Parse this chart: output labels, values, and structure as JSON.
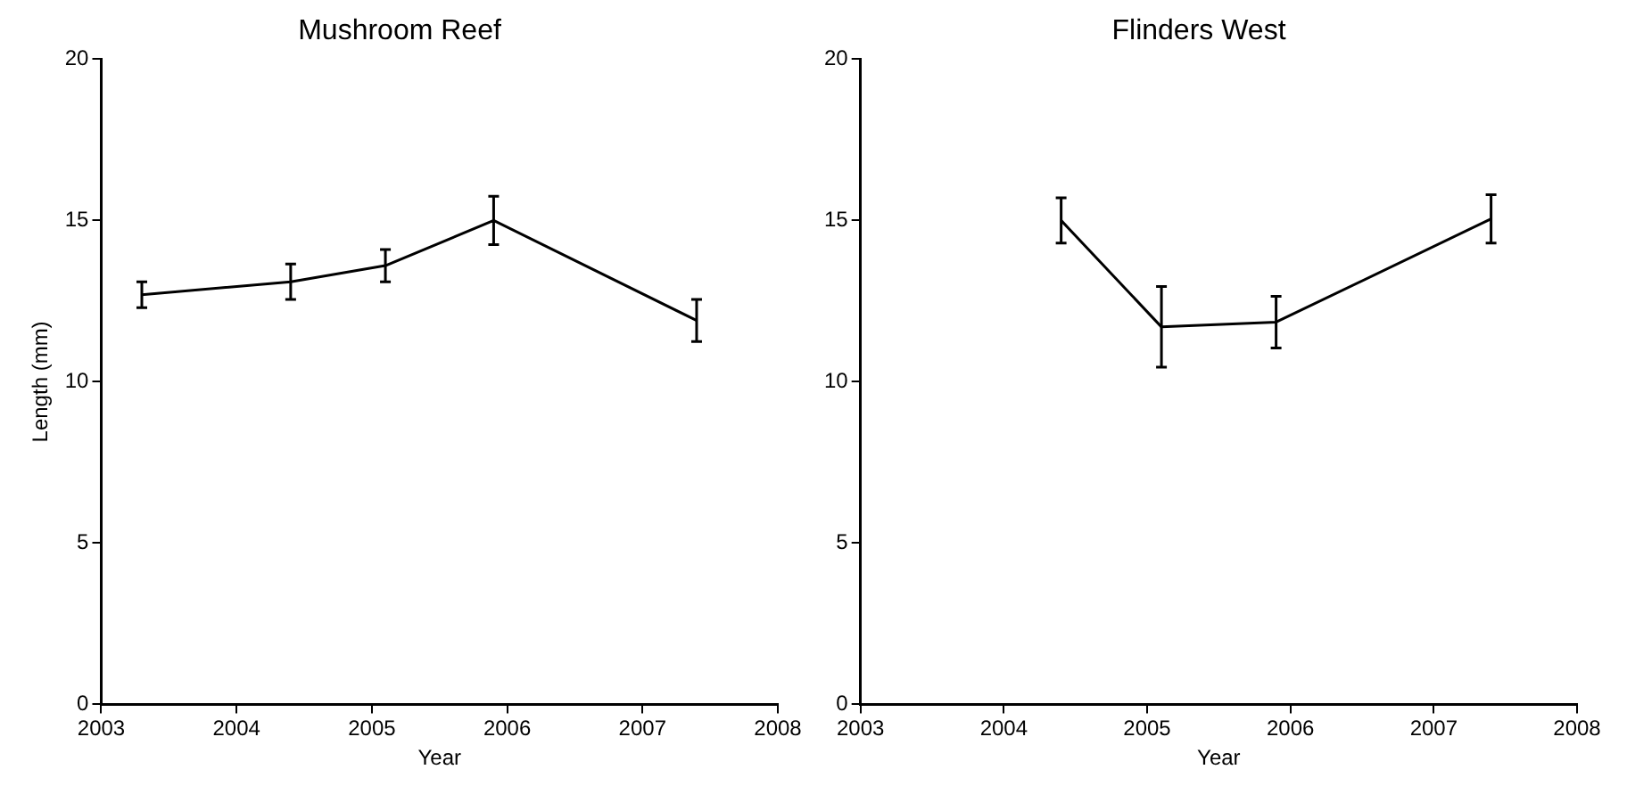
{
  "chart_data": [
    {
      "type": "line",
      "title": "Mushroom Reef",
      "xlabel": "Year",
      "ylabel": "Length (mm)",
      "x": [
        2003.3,
        2004.4,
        2005.1,
        2005.9,
        2007.4
      ],
      "series": [
        {
          "color": "#000000",
          "values": [
            12.7,
            13.1,
            13.6,
            15.0,
            11.9
          ],
          "errors": [
            0.4,
            0.55,
            0.5,
            0.75,
            0.65
          ]
        }
      ],
      "xlim": [
        2003,
        2008
      ],
      "xticks": [
        2003,
        2004,
        2005,
        2006,
        2007,
        2008
      ],
      "ylim": [
        0,
        20
      ],
      "yticks": [
        0,
        5,
        10,
        15,
        20
      ],
      "grid": false,
      "legend": false,
      "marker": "none",
      "line_style": "solid"
    },
    {
      "type": "line",
      "title": "Flinders West",
      "xlabel": "Year",
      "x": [
        2004.4,
        2005.1,
        2005.9,
        2007.4
      ],
      "series": [
        {
          "color": "#000000",
          "values": [
            15.0,
            11.7,
            11.85,
            15.05
          ],
          "errors": [
            0.7,
            1.25,
            0.8,
            0.75
          ]
        }
      ],
      "xlim": [
        2003,
        2008
      ],
      "xticks": [
        2003,
        2004,
        2005,
        2006,
        2007,
        2008
      ],
      "ylim": [
        0,
        20
      ],
      "yticks": [
        0,
        5,
        10,
        15,
        20
      ],
      "grid": false,
      "legend": false,
      "marker": "none",
      "line_style": "solid"
    }
  ]
}
